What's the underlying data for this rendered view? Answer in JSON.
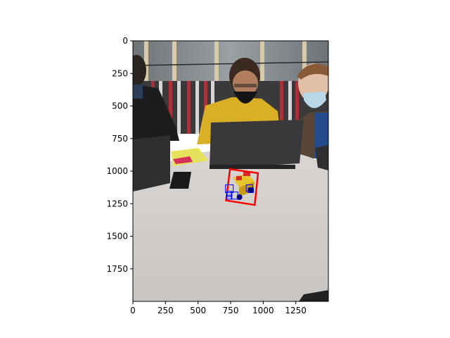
{
  "chart_data": {
    "type": "image",
    "title": "",
    "xlabel": "",
    "ylabel": "",
    "xlim": [
      0,
      1500
    ],
    "ylim": [
      2000,
      0
    ],
    "y_inverted": true,
    "xticks": [
      0,
      250,
      500,
      750,
      1000,
      1250
    ],
    "yticks": [
      0,
      250,
      500,
      750,
      1000,
      1250,
      1500,
      1750
    ],
    "image_description": "three people seated at a round white table with laptops; a small yellow and red object on the table",
    "overlays": [
      {
        "kind": "polygon",
        "color": "#ff0000",
        "points": [
          [
            715,
            1225
          ],
          [
            745,
            985
          ],
          [
            960,
            1015
          ],
          [
            935,
            1260
          ]
        ]
      },
      {
        "kind": "boxes",
        "color": "#0000ff",
        "boxes": [
          [
            710,
            1105,
            770,
            1165
          ],
          [
            720,
            1155,
            760,
            1195
          ],
          [
            755,
            1160,
            805,
            1215
          ],
          [
            720,
            1185,
            760,
            1215
          ],
          [
            870,
            1105,
            920,
            1155
          ],
          [
            885,
            1130,
            925,
            1165
          ]
        ]
      },
      {
        "kind": "points",
        "color": "#000080",
        "points": [
          [
            818,
            1200
          ],
          [
            905,
            1145
          ]
        ]
      }
    ]
  }
}
